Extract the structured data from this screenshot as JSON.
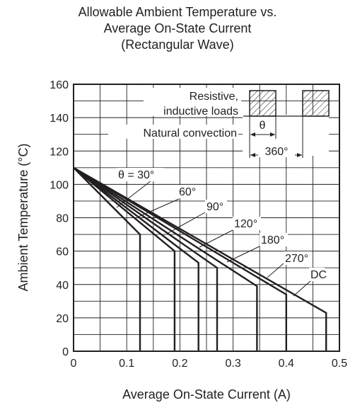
{
  "chart_data": {
    "type": "line",
    "title_lines": [
      "Allowable Ambient Temperature vs.",
      "Average On-State Current",
      "(Rectangular Wave)"
    ],
    "xlabel": "Average On-State Current  (A)",
    "ylabel": "Ambient Temperature  (°C)",
    "xlim": [
      0,
      0.5
    ],
    "ylim": [
      0,
      160
    ],
    "xticks": [
      "0",
      "0.1",
      "0.2",
      "0.3",
      "0.4",
      "0.5"
    ],
    "yticks": [
      "0",
      "20",
      "40",
      "60",
      "80",
      "100",
      "120",
      "140",
      "160"
    ],
    "grid": true,
    "series": [
      {
        "name": "θ = 30°",
        "points": [
          [
            0,
            110
          ],
          [
            0.125,
            70
          ],
          [
            0.125,
            0
          ]
        ]
      },
      {
        "name": "60°",
        "points": [
          [
            0,
            110
          ],
          [
            0.19,
            60
          ],
          [
            0.19,
            0
          ]
        ]
      },
      {
        "name": "90°",
        "points": [
          [
            0,
            110
          ],
          [
            0.235,
            53
          ],
          [
            0.235,
            0
          ]
        ]
      },
      {
        "name": "120°",
        "points": [
          [
            0,
            110
          ],
          [
            0.27,
            50
          ],
          [
            0.27,
            0
          ]
        ]
      },
      {
        "name": "180°",
        "points": [
          [
            0,
            110
          ],
          [
            0.345,
            39
          ],
          [
            0.345,
            0
          ]
        ]
      },
      {
        "name": "270°",
        "points": [
          [
            0,
            110
          ],
          [
            0.4,
            34
          ],
          [
            0.4,
            0
          ]
        ]
      },
      {
        "name": "DC",
        "points": [
          [
            0,
            110
          ],
          [
            0.475,
            23
          ],
          [
            0.475,
            0
          ]
        ]
      }
    ],
    "annotations": [
      "Resistive,",
      "inductive loads",
      "Natural convection",
      "θ",
      "360°"
    ]
  }
}
